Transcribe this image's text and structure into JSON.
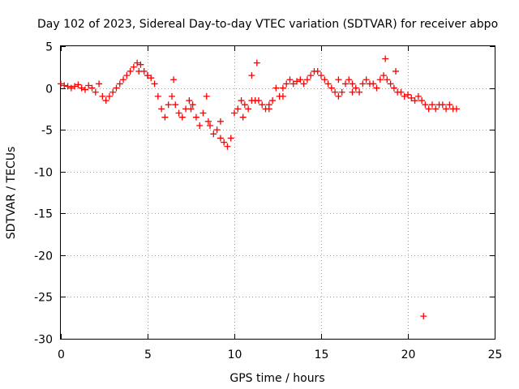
{
  "chart_data": {
    "type": "scatter",
    "title": "Day 102 of 2023, Sidereal Day-to-day VTEC variation (SDTVAR) for receiver abpo",
    "xlabel": "GPS time / hours",
    "ylabel": "SDTVAR / TECUs",
    "xlim": [
      0,
      25
    ],
    "ylim": [
      -30,
      5
    ],
    "xticks": [
      "0",
      "5",
      "10",
      "15",
      "20",
      "25"
    ],
    "yticks": [
      "5",
      "0",
      "-5",
      "-10",
      "-15",
      "-20",
      "-25",
      "-30"
    ],
    "grid": true,
    "marker": "plus",
    "series_color": "#ff0000",
    "series": [
      {
        "name": "SDTVAR",
        "x": [
          0.0,
          0.2,
          0.4,
          0.6,
          0.8,
          1.0,
          1.2,
          1.4,
          1.6,
          1.8,
          2.0,
          2.2,
          2.4,
          2.6,
          2.8,
          3.0,
          3.2,
          3.4,
          3.6,
          3.8,
          4.0,
          4.2,
          4.4,
          4.6,
          4.8,
          5.0,
          5.2,
          5.4,
          5.6,
          5.8,
          6.0,
          6.2,
          6.4,
          6.6,
          6.8,
          7.0,
          7.2,
          7.4,
          7.6,
          7.8,
          8.0,
          8.2,
          8.4,
          8.6,
          8.8,
          9.0,
          9.2,
          9.4,
          9.6,
          9.8,
          10.0,
          10.2,
          10.4,
          10.6,
          10.8,
          11.0,
          11.2,
          11.4,
          11.6,
          11.8,
          12.0,
          12.2,
          12.4,
          12.6,
          12.8,
          13.0,
          13.2,
          13.4,
          13.6,
          13.8,
          14.0,
          14.2,
          14.4,
          14.6,
          14.8,
          15.0,
          15.2,
          15.4,
          15.6,
          15.8,
          16.0,
          16.2,
          16.4,
          16.6,
          16.8,
          17.0,
          17.2,
          17.4,
          17.6,
          17.8,
          18.0,
          18.2,
          18.4,
          18.6,
          18.8,
          19.0,
          19.2,
          19.4,
          19.6,
          19.8,
          20.0,
          20.2,
          20.4,
          20.6,
          20.8,
          21.0,
          21.2,
          21.4,
          21.6,
          21.8,
          22.0,
          22.2,
          22.4,
          22.6,
          22.8,
          20.9,
          4.5,
          5.0,
          6.5,
          7.5,
          8.5,
          9.2,
          10.5,
          11.0,
          11.3,
          12.0,
          12.8,
          16.0,
          16.8,
          18.7,
          19.3
        ],
        "y": [
          0.5,
          0.3,
          0.2,
          0.0,
          0.2,
          0.4,
          0.0,
          -0.2,
          0.3,
          0.0,
          -0.5,
          0.5,
          -1.0,
          -1.5,
          -1.0,
          -0.5,
          0.0,
          0.5,
          1.0,
          1.5,
          2.0,
          2.5,
          3.0,
          2.8,
          2.0,
          1.5,
          1.2,
          0.5,
          -1.0,
          -2.5,
          -3.5,
          -2.0,
          -1.0,
          -2.0,
          -3.0,
          -3.5,
          -2.5,
          -1.5,
          -2.0,
          -3.5,
          -4.5,
          -3.0,
          -1.0,
          -4.5,
          -5.5,
          -5.0,
          -4.0,
          -6.5,
          -7.0,
          -6.0,
          -3.0,
          -2.5,
          -1.5,
          -2.0,
          -2.5,
          -1.5,
          -1.5,
          -1.5,
          -2.0,
          -2.5,
          -2.5,
          -1.5,
          0.0,
          -1.0,
          0.0,
          0.5,
          1.0,
          0.5,
          0.8,
          1.0,
          0.5,
          1.0,
          1.5,
          2.0,
          2.0,
          1.5,
          1.0,
          0.5,
          0.0,
          -0.5,
          -1.0,
          -0.5,
          0.5,
          1.0,
          0.5,
          0.0,
          -0.5,
          0.5,
          1.0,
          0.5,
          0.5,
          0.0,
          1.0,
          1.5,
          1.0,
          0.5,
          0.0,
          -0.5,
          -0.5,
          -1.0,
          -0.8,
          -1.2,
          -1.5,
          -1.0,
          -1.5,
          -2.0,
          -2.5,
          -2.0,
          -2.5,
          -2.0,
          -2.0,
          -2.5,
          -2.0,
          -2.5,
          -2.5,
          -27.3,
          2.0,
          1.5,
          1.0,
          -2.5,
          -4.0,
          -6.0,
          -3.5,
          1.5,
          3.0,
          -2.0,
          -1.0,
          1.0,
          -0.5,
          3.5,
          2.0
        ]
      }
    ]
  }
}
